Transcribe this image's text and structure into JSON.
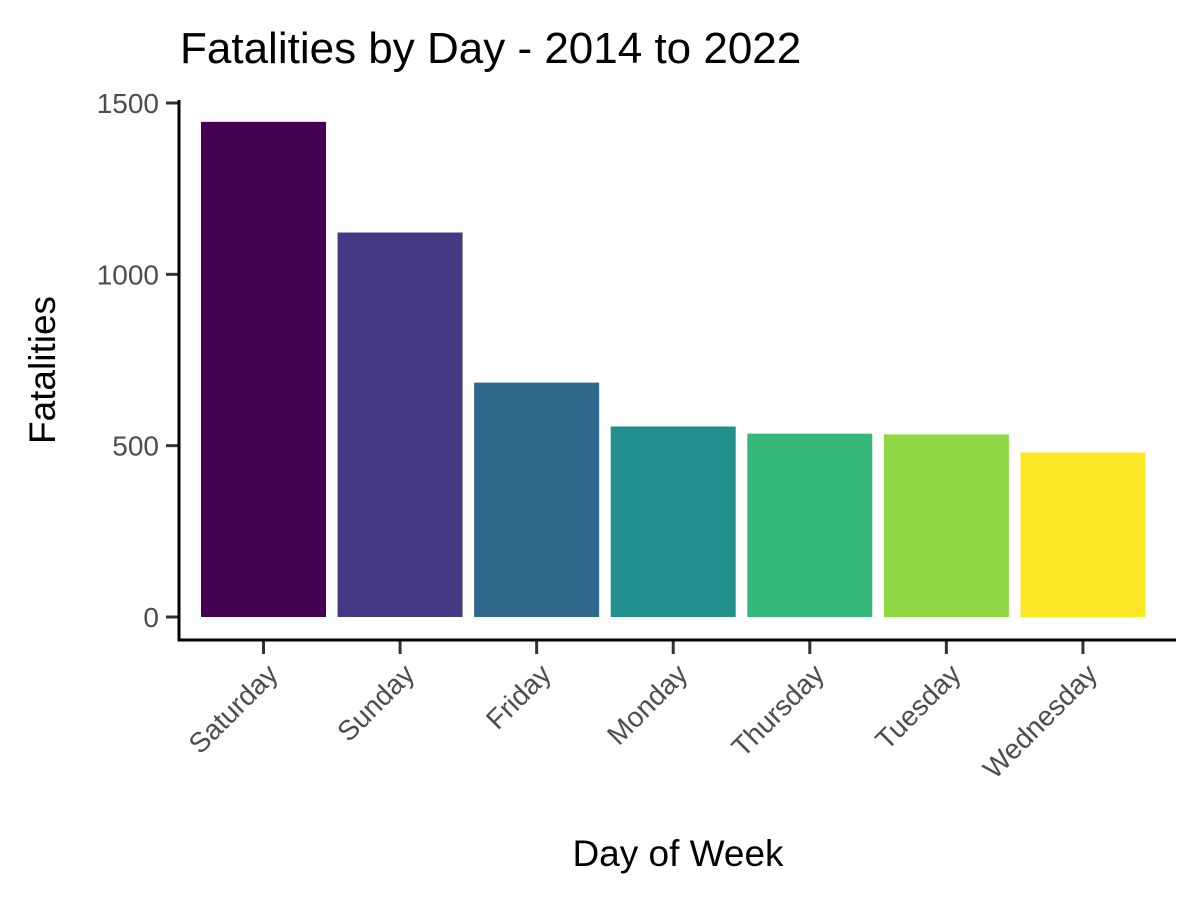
{
  "chart_data": {
    "type": "bar",
    "title": "Fatalities by Day - 2014 to 2022",
    "xlabel": "Day of Week",
    "ylabel": "Fatalities",
    "categories": [
      "Saturday",
      "Sunday",
      "Friday",
      "Monday",
      "Thursday",
      "Tuesday",
      "Wednesday"
    ],
    "values": [
      1445,
      1122,
      684,
      556,
      535,
      533,
      480
    ],
    "colors": [
      "#440154",
      "#443A83",
      "#31688E",
      "#21908C",
      "#35B779",
      "#8FD744",
      "#FDE725"
    ],
    "ylim": [
      0,
      1500
    ],
    "yticks": [
      0,
      500,
      1000,
      1500
    ],
    "grid": false,
    "legend": "none"
  }
}
